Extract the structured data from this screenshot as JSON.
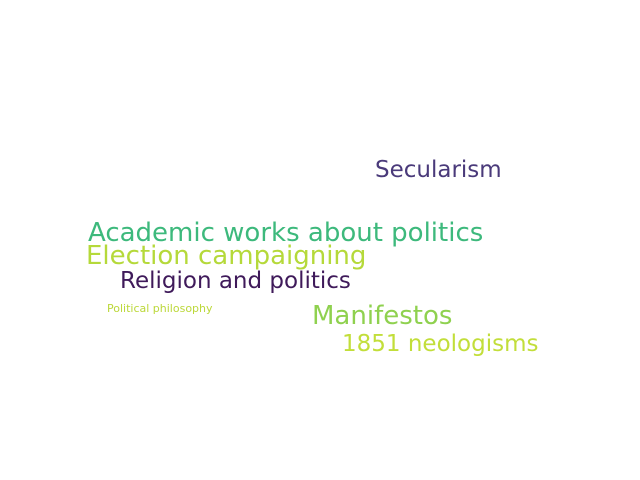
{
  "words": [
    {
      "text": "Secularism",
      "color": "#4a3a7a"
    },
    {
      "text": "Academic works about politics",
      "color": "#3db97c"
    },
    {
      "text": "Election campaigning",
      "color": "#b5d93a"
    },
    {
      "text": "Religion and politics",
      "color": "#3f1a5a"
    },
    {
      "text": "Political philosophy",
      "color": "#bcd83a"
    },
    {
      "text": "Manifestos",
      "color": "#8fd14f"
    },
    {
      "text": "1851 neologisms",
      "color": "#c2de3a"
    }
  ]
}
